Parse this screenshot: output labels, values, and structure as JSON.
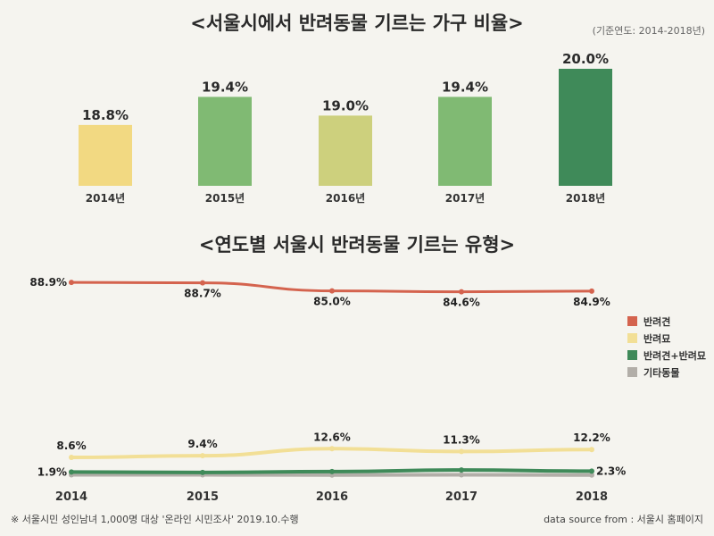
{
  "chart_data": [
    {
      "type": "bar",
      "title": "<서울시에서 반려동물 기르는 가구 비율>",
      "subtitle": "(기준연도: 2014-2018년)",
      "categories": [
        "2014년",
        "2015년",
        "2016년",
        "2017년",
        "2018년"
      ],
      "values": [
        18.8,
        19.4,
        19.0,
        19.4,
        20.0
      ],
      "value_labels": [
        "18.8%",
        "19.4%",
        "19.0%",
        "19.4%",
        "20.0%"
      ],
      "colors": [
        "#f2d982",
        "#80ba73",
        "#cdd07d",
        "#80ba73",
        "#3f8a59"
      ],
      "ylim": [
        17.5,
        20.0
      ],
      "grid": false
    },
    {
      "type": "line",
      "title": "<연도별 서울시 반려동물 기르는 유형>",
      "x": [
        "2014",
        "2015",
        "2016",
        "2017",
        "2018"
      ],
      "ylim": [
        0,
        100
      ],
      "grid": false,
      "legend_position": "right",
      "series": [
        {
          "name": "반려견",
          "color": "#d4634e",
          "values": [
            88.9,
            88.7,
            85.0,
            84.6,
            84.9
          ],
          "labels": [
            "88.9%",
            "88.7%",
            "85.0%",
            "84.6%",
            "84.9%"
          ]
        },
        {
          "name": "반려묘",
          "color": "#f2df96",
          "values": [
            8.6,
            9.4,
            12.6,
            11.3,
            12.2
          ],
          "labels": [
            "8.6%",
            "9.4%",
            "12.6%",
            "11.3%",
            "12.2%"
          ]
        },
        {
          "name": "반려견+반려묘",
          "color": "#3f8a59",
          "values": [
            1.9,
            1.7,
            2.1,
            2.8,
            2.3
          ],
          "labels": [
            "1.9%",
            "",
            "",
            "",
            "2.3%"
          ]
        },
        {
          "name": "기타동물",
          "color": "#b2aea8",
          "values": [
            0.6,
            0.6,
            0.5,
            0.6,
            0.5
          ],
          "labels": [
            "",
            "",
            "",
            "",
            ""
          ]
        }
      ]
    }
  ],
  "footnote": "※ 서울시민 성인남녀 1,000명 대상 '온라인 시민조사' 2019.10.수행",
  "source": "data source from : 서울시 홈페이지"
}
